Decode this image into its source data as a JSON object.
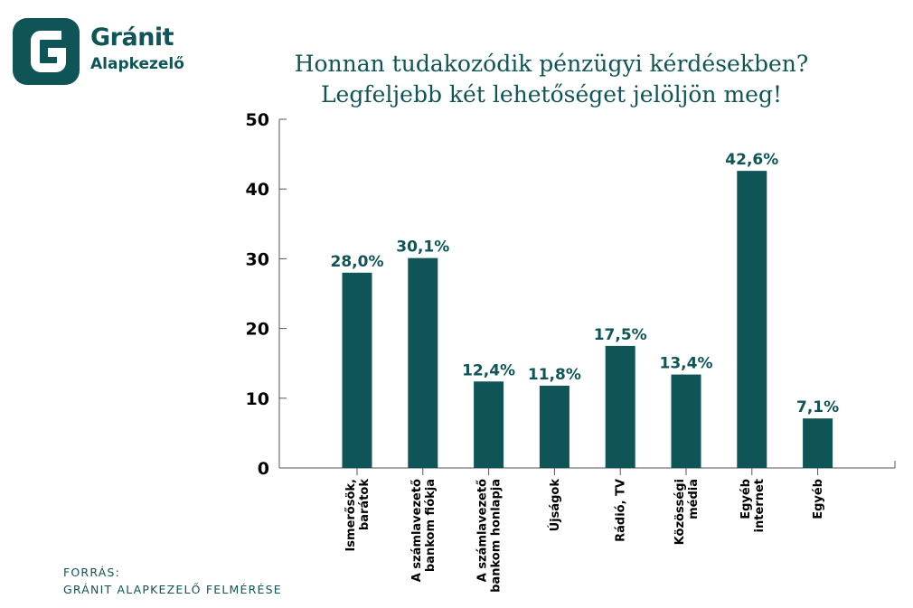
{
  "brand": {
    "name": "Gránit",
    "subtitle": "Alapkezelő",
    "color": "#0f5457"
  },
  "title": {
    "line1": "Honnan tudakozódik pénzügyi kérdésekben?",
    "line2": "Legfeljebb két lehetőséget jelöljön meg!"
  },
  "source": {
    "label": "FORRÁS:",
    "text": "GRÁNIT ALAPKEZELŐ FELMÉRÉSE"
  },
  "chart_data": {
    "type": "bar",
    "categories": [
      [
        "Ismerősök,",
        "barátok"
      ],
      [
        "A számlavezető",
        "bankom fiókja"
      ],
      [
        "A számlavezető",
        "bankom honlapja"
      ],
      [
        "Újságok"
      ],
      [
        "Rádió, TV"
      ],
      [
        "Közösségi",
        "média"
      ],
      [
        "Egyéb",
        "internet"
      ],
      [
        "Egyéb"
      ]
    ],
    "values": [
      28.0,
      30.1,
      12.4,
      11.8,
      17.5,
      13.4,
      42.6,
      7.1
    ],
    "data_labels": [
      "28,0%",
      "30,1%",
      "12,4%",
      "11,8%",
      "17,5%",
      "13,4%",
      "42,6%",
      "7,1%"
    ],
    "ylim": [
      0,
      50
    ],
    "yticks": [
      0,
      10,
      20,
      30,
      40,
      50
    ],
    "bar_color": "#0f5457",
    "axis_color": "#555555",
    "grid": false,
    "legend": "none"
  }
}
